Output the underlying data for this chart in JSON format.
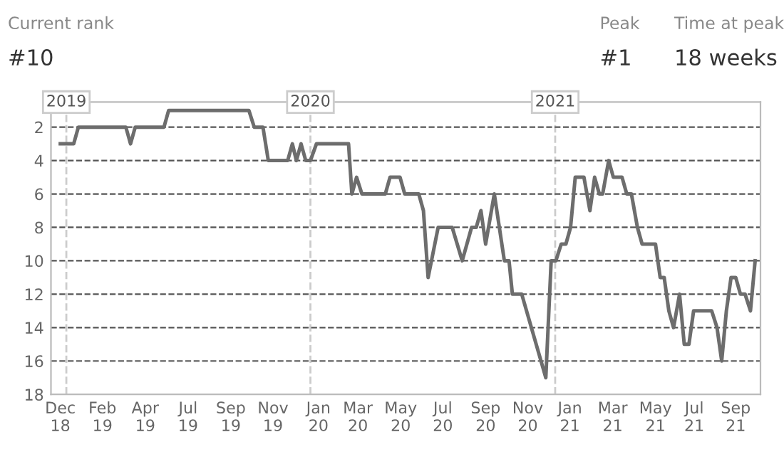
{
  "chart_data": {
    "type": "line",
    "annotations": [
      "Current rank",
      "#10",
      "Peak",
      "#1",
      "Time at peak",
      "18 weeks"
    ],
    "x": [
      "2018-12-23",
      "2019-01-12",
      "2019-01-19",
      "2019-03-31",
      "2019-04-07",
      "2019-04-14",
      "2019-05-27",
      "2019-06-03",
      "2019-10-01",
      "2019-10-09",
      "2019-10-22",
      "2019-10-30",
      "2019-11-28",
      "2019-12-05",
      "2019-12-11",
      "2019-12-18",
      "2019-12-25",
      "2020-01-01",
      "2020-01-10",
      "2020-02-27",
      "2020-03-03",
      "2020-03-10",
      "2020-03-18",
      "2020-04-22",
      "2020-04-29",
      "2020-05-14",
      "2020-05-21",
      "2020-06-11",
      "2020-06-18",
      "2020-06-25",
      "2020-07-10",
      "2020-07-31",
      "2020-08-15",
      "2020-08-29",
      "2020-09-05",
      "2020-09-12",
      "2020-09-19",
      "2020-10-02",
      "2020-10-17",
      "2020-10-24",
      "2020-10-29",
      "2020-11-12",
      "2020-12-18",
      "2020-12-26",
      "2021-01-02",
      "2021-01-10",
      "2021-01-17",
      "2021-01-24",
      "2021-01-31",
      "2021-02-13",
      "2021-02-22",
      "2021-03-01",
      "2021-03-08",
      "2021-03-13",
      "2021-03-22",
      "2021-03-29",
      "2021-04-11",
      "2021-04-18",
      "2021-04-25",
      "2021-05-04",
      "2021-05-11",
      "2021-05-31",
      "2021-06-07",
      "2021-06-13",
      "2021-06-20",
      "2021-06-27",
      "2021-07-06",
      "2021-07-13",
      "2021-07-20",
      "2021-07-27",
      "2021-08-23",
      "2021-08-31",
      "2021-09-07",
      "2021-09-14",
      "2021-09-21",
      "2021-09-28",
      "2021-10-05",
      "2021-10-12",
      "2021-10-20",
      "2021-10-27"
    ],
    "series": [
      {
        "color": "#6d6d6d",
        "values": [
          3,
          3,
          2,
          2,
          3,
          2,
          2,
          1,
          1,
          2,
          2,
          4,
          4,
          3,
          4,
          3,
          4,
          4,
          3,
          3,
          6,
          5,
          6,
          6,
          5,
          5,
          6,
          6,
          7,
          11,
          8,
          8,
          10,
          8,
          8,
          7,
          9,
          6,
          10,
          10,
          12,
          12,
          17,
          10,
          10,
          9,
          9,
          8,
          5,
          5,
          7,
          5,
          6,
          6,
          4,
          5,
          5,
          6,
          6,
          8,
          9,
          9,
          11,
          11,
          13,
          14,
          12,
          15,
          15,
          13,
          13,
          14,
          16,
          13,
          11,
          11,
          12,
          12,
          13,
          10
        ]
      }
    ],
    "xlim": [
      "2018-12-09",
      "2021-11-04"
    ],
    "xticks": [
      {
        "value": "2018-12-23",
        "label": "Dec\n18"
      },
      {
        "value": "2019-02-24",
        "label": "Feb\n19"
      },
      {
        "value": "2019-04-29",
        "label": "Apr\n19"
      },
      {
        "value": "2019-07-02",
        "label": "Jul\n19"
      },
      {
        "value": "2019-09-04",
        "label": "Sep\n19"
      },
      {
        "value": "2019-11-06",
        "label": "Nov\n19"
      },
      {
        "value": "2020-01-13",
        "label": "Jan\n20"
      },
      {
        "value": "2020-03-12",
        "label": "Mar\n20"
      },
      {
        "value": "2020-05-15",
        "label": "May\n20"
      },
      {
        "value": "2020-07-17",
        "label": "Jul\n20"
      },
      {
        "value": "2020-09-19",
        "label": "Sep\n20"
      },
      {
        "value": "2020-11-21",
        "label": "Nov\n20"
      },
      {
        "value": "2021-01-23",
        "label": "Jan\n21"
      },
      {
        "value": "2021-03-28",
        "label": "Mar\n21"
      },
      {
        "value": "2021-05-31",
        "label": "May\n21"
      },
      {
        "value": "2021-07-28",
        "label": "Jul\n21"
      },
      {
        "value": "2021-09-28",
        "label": "Sep\n21"
      }
    ],
    "ylim": [
      18,
      0.5
    ],
    "yticks": [
      2,
      4,
      6,
      8,
      10,
      12,
      14,
      16,
      18
    ],
    "grid": "y",
    "marker": "none",
    "line_style": "solid",
    "ref_lines": [
      {
        "axis": "x",
        "value": "2019-01-01",
        "label": "2019",
        "color": "#cccccc",
        "line_style": "dashed"
      },
      {
        "axis": "x",
        "value": "2020-01-01",
        "label": "2020",
        "color": "#cccccc",
        "line_style": "dashed"
      },
      {
        "axis": "x",
        "value": "2021-01-01",
        "label": "2021",
        "color": "#cccccc",
        "line_style": "dashed"
      }
    ]
  }
}
